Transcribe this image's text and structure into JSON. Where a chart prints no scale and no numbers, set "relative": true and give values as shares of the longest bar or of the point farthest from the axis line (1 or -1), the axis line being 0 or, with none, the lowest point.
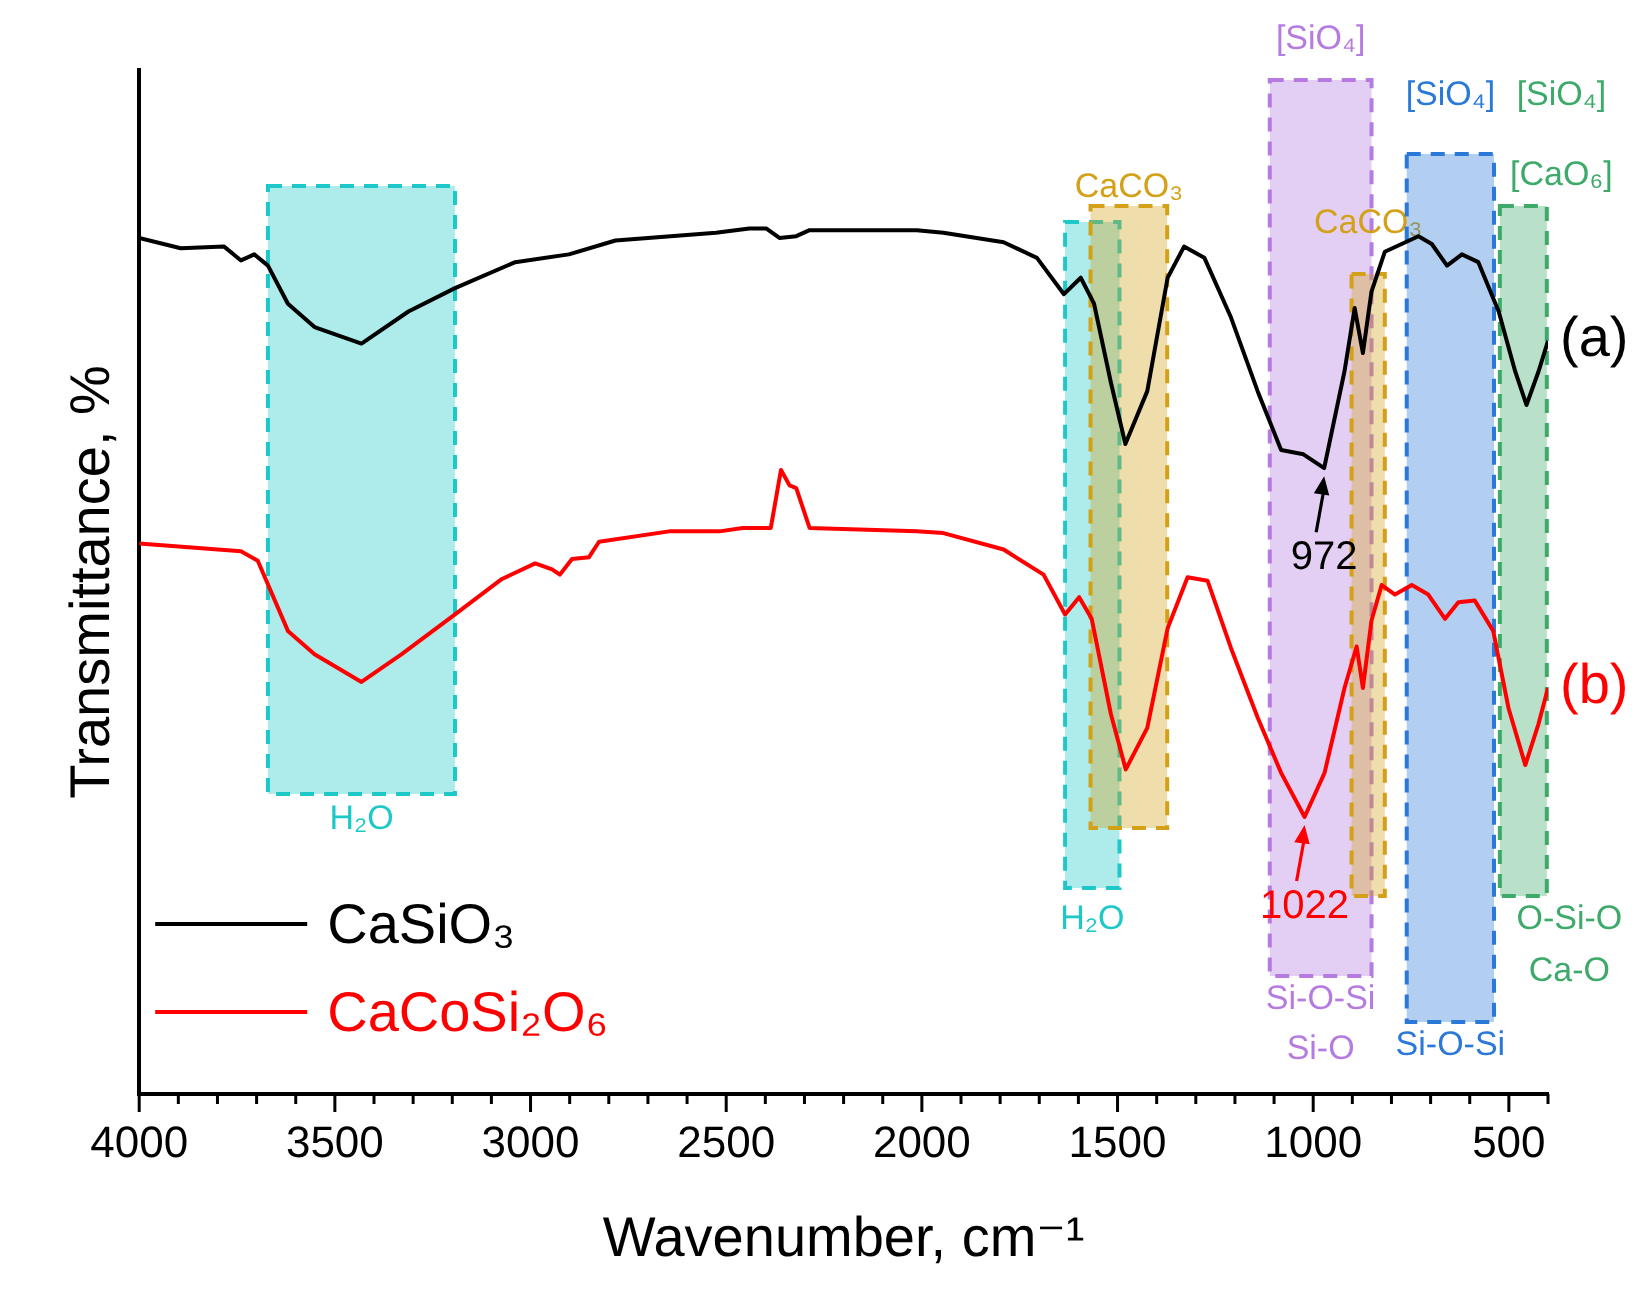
{
  "chart_data": {
    "type": "line",
    "relative": true,
    "xlabel": "Wavenumber, cm⁻¹",
    "ylabel": "Transmittance, %",
    "xlim": [
      4000,
      400
    ],
    "xticks": [
      4000,
      {
        "value": 3900,
        "label": null
      },
      {
        "value": 3800,
        "label": null
      },
      {
        "value": 3700,
        "label": null
      },
      {
        "value": 3600,
        "label": null
      },
      3500,
      {
        "value": 3400,
        "label": null
      },
      {
        "value": 3300,
        "label": null
      },
      {
        "value": 3200,
        "label": null
      },
      {
        "value": 3100,
        "label": null
      },
      3000,
      {
        "value": 2900,
        "label": null
      },
      {
        "value": 2800,
        "label": null
      },
      {
        "value": 2700,
        "label": null
      },
      {
        "value": 2600,
        "label": null
      },
      2500,
      {
        "value": 2400,
        "label": null
      },
      {
        "value": 2300,
        "label": null
      },
      {
        "value": 2200,
        "label": null
      },
      {
        "value": 2100,
        "label": null
      },
      2000,
      {
        "value": 1900,
        "label": null
      },
      {
        "value": 1800,
        "label": null
      },
      {
        "value": 1700,
        "label": null
      },
      {
        "value": 1600,
        "label": null
      },
      1500,
      {
        "value": 1400,
        "label": null
      },
      {
        "value": 1300,
        "label": null
      },
      {
        "value": 1200,
        "label": null
      },
      {
        "value": 1100,
        "label": null
      },
      1000,
      {
        "value": 900,
        "label": null
      },
      {
        "value": 800,
        "label": null
      },
      {
        "value": 700,
        "label": null
      },
      {
        "value": 600,
        "label": null
      },
      500,
      {
        "value": 400,
        "label": null
      }
    ],
    "legend": "bottom left",
    "series": [
      {
        "name": "CaSiO₃",
        "color": "#000000",
        "x": [
          4000,
          3894,
          3783,
          3740,
          3706,
          3671,
          3620,
          3552,
          3432,
          3312,
          3193,
          3039,
          2902,
          2783,
          2526,
          2441,
          2398,
          2364,
          2321,
          2287,
          2013,
          1945,
          1791,
          1706,
          1637,
          1594,
          1560,
          1517,
          1480,
          1424,
          1372,
          1330,
          1278,
          1210,
          1142,
          1082,
          1025,
          972,
          920,
          894,
          873,
          851,
          817,
          731,
          697,
          658,
          620,
          578,
          526,
          484,
          455,
          424,
          400
        ],
        "values": [
          0.989,
          0.977,
          0.979,
          0.963,
          0.97,
          0.957,
          0.913,
          0.886,
          0.867,
          0.904,
          0.931,
          0.961,
          0.97,
          0.986,
          0.995,
          1,
          1,
          0.989,
          0.991,
          0.998,
          0.998,
          0.995,
          0.984,
          0.966,
          0.924,
          0.943,
          0.913,
          0.822,
          0.751,
          0.812,
          0.943,
          0.979,
          0.966,
          0.897,
          0.812,
          0.744,
          0.739,
          0.723,
          0.835,
          0.908,
          0.856,
          0.927,
          0.973,
          0.991,
          0.982,
          0.957,
          0.97,
          0.961,
          0.904,
          0.835,
          0.796,
          0.835,
          0.87
        ]
      },
      {
        "name": "CaCoSi₂O₆",
        "color": "#ff0000",
        "x": [
          4000,
          3740,
          3697,
          3620,
          3552,
          3432,
          3330,
          3193,
          3073,
          2988,
          2945,
          2925,
          2894,
          2851,
          2825,
          2646,
          2517,
          2458,
          2386,
          2360,
          2338,
          2321,
          2287,
          2013,
          1945,
          1791,
          1689,
          1634,
          1598,
          1566,
          1517,
          1479,
          1424,
          1372,
          1321,
          1270,
          1210,
          1142,
          1082,
          1022,
          971,
          920,
          889,
          873,
          851,
          825,
          791,
          748,
          706,
          663,
          629,
          587,
          540,
          501,
          458,
          424,
          400
        ],
        "values": [
          0.636,
          0.627,
          0.616,
          0.535,
          0.508,
          0.476,
          0.508,
          0.554,
          0.595,
          0.613,
          0.606,
          0.6,
          0.618,
          0.62,
          0.638,
          0.65,
          0.65,
          0.654,
          0.654,
          0.721,
          0.703,
          0.7,
          0.654,
          0.65,
          0.648,
          0.629,
          0.6,
          0.554,
          0.574,
          0.549,
          0.439,
          0.375,
          0.423,
          0.538,
          0.597,
          0.593,
          0.515,
          0.435,
          0.371,
          0.32,
          0.371,
          0.469,
          0.517,
          0.469,
          0.547,
          0.588,
          0.577,
          0.588,
          0.577,
          0.549,
          0.568,
          0.57,
          0.535,
          0.446,
          0.38,
          0.428,
          0.469
        ]
      }
    ],
    "bands": [
      {
        "axis": "x",
        "from": 3671,
        "to": 3193,
        "color": "#1fc8c8",
        "label": "H₂O"
      },
      {
        "axis": "x",
        "from": 1634,
        "to": 1495,
        "color": "#1fc8c8",
        "label": "H₂O"
      },
      {
        "axis": "x",
        "from": 1569,
        "to": 1373,
        "color": "#d4a017",
        "label": "CaCO₃"
      },
      {
        "axis": "x",
        "from": 1111,
        "to": 851,
        "color": "#b57be0",
        "label": "[SiO₄]"
      },
      {
        "axis": "x",
        "from": 902,
        "to": 817,
        "color": "#d4a017",
        "label": "CaCO₃"
      },
      {
        "axis": "x",
        "from": 761,
        "to": 538,
        "color": "#2a78d8",
        "label": "[SiO₄]"
      },
      {
        "axis": "x",
        "from": 523,
        "to": 403,
        "color": "#3daa6a",
        "label": "[SiO₄]"
      }
    ],
    "annotations": [
      "Si-O-Si",
      "Si-O",
      "Si-O-Si",
      "[CaO₆]",
      "O-Si-O",
      "Ca-O",
      {
        "text": "972",
        "x": 972,
        "y": 0.723
      },
      {
        "text": "1022",
        "x": 1022,
        "y": 0.32
      },
      {
        "text": "(a)",
        "x": 400,
        "y": 0.87
      },
      {
        "text": "(b)",
        "x": 400,
        "y": 0.469
      }
    ]
  }
}
